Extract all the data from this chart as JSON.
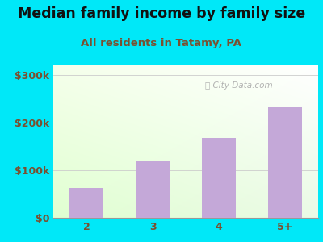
{
  "title": "Median family income by family size",
  "subtitle": "All residents in Tatamy, PA",
  "categories": [
    "2",
    "3",
    "4",
    "5+"
  ],
  "values": [
    62000,
    118000,
    168000,
    232000
  ],
  "bar_color": "#c4a8d8",
  "title_fontsize": 12.5,
  "subtitle_fontsize": 9.5,
  "subtitle_color": "#7a5030",
  "title_color": "#111111",
  "tick_label_color": "#7a5030",
  "ytick_labels": [
    "$0",
    "$100k",
    "$200k",
    "$300k"
  ],
  "ytick_values": [
    0,
    100000,
    200000,
    300000
  ],
  "ylim": [
    0,
    320000
  ],
  "background_outer": "#00e8f8",
  "watermark": "City-Data.com",
  "bar_width": 0.52
}
